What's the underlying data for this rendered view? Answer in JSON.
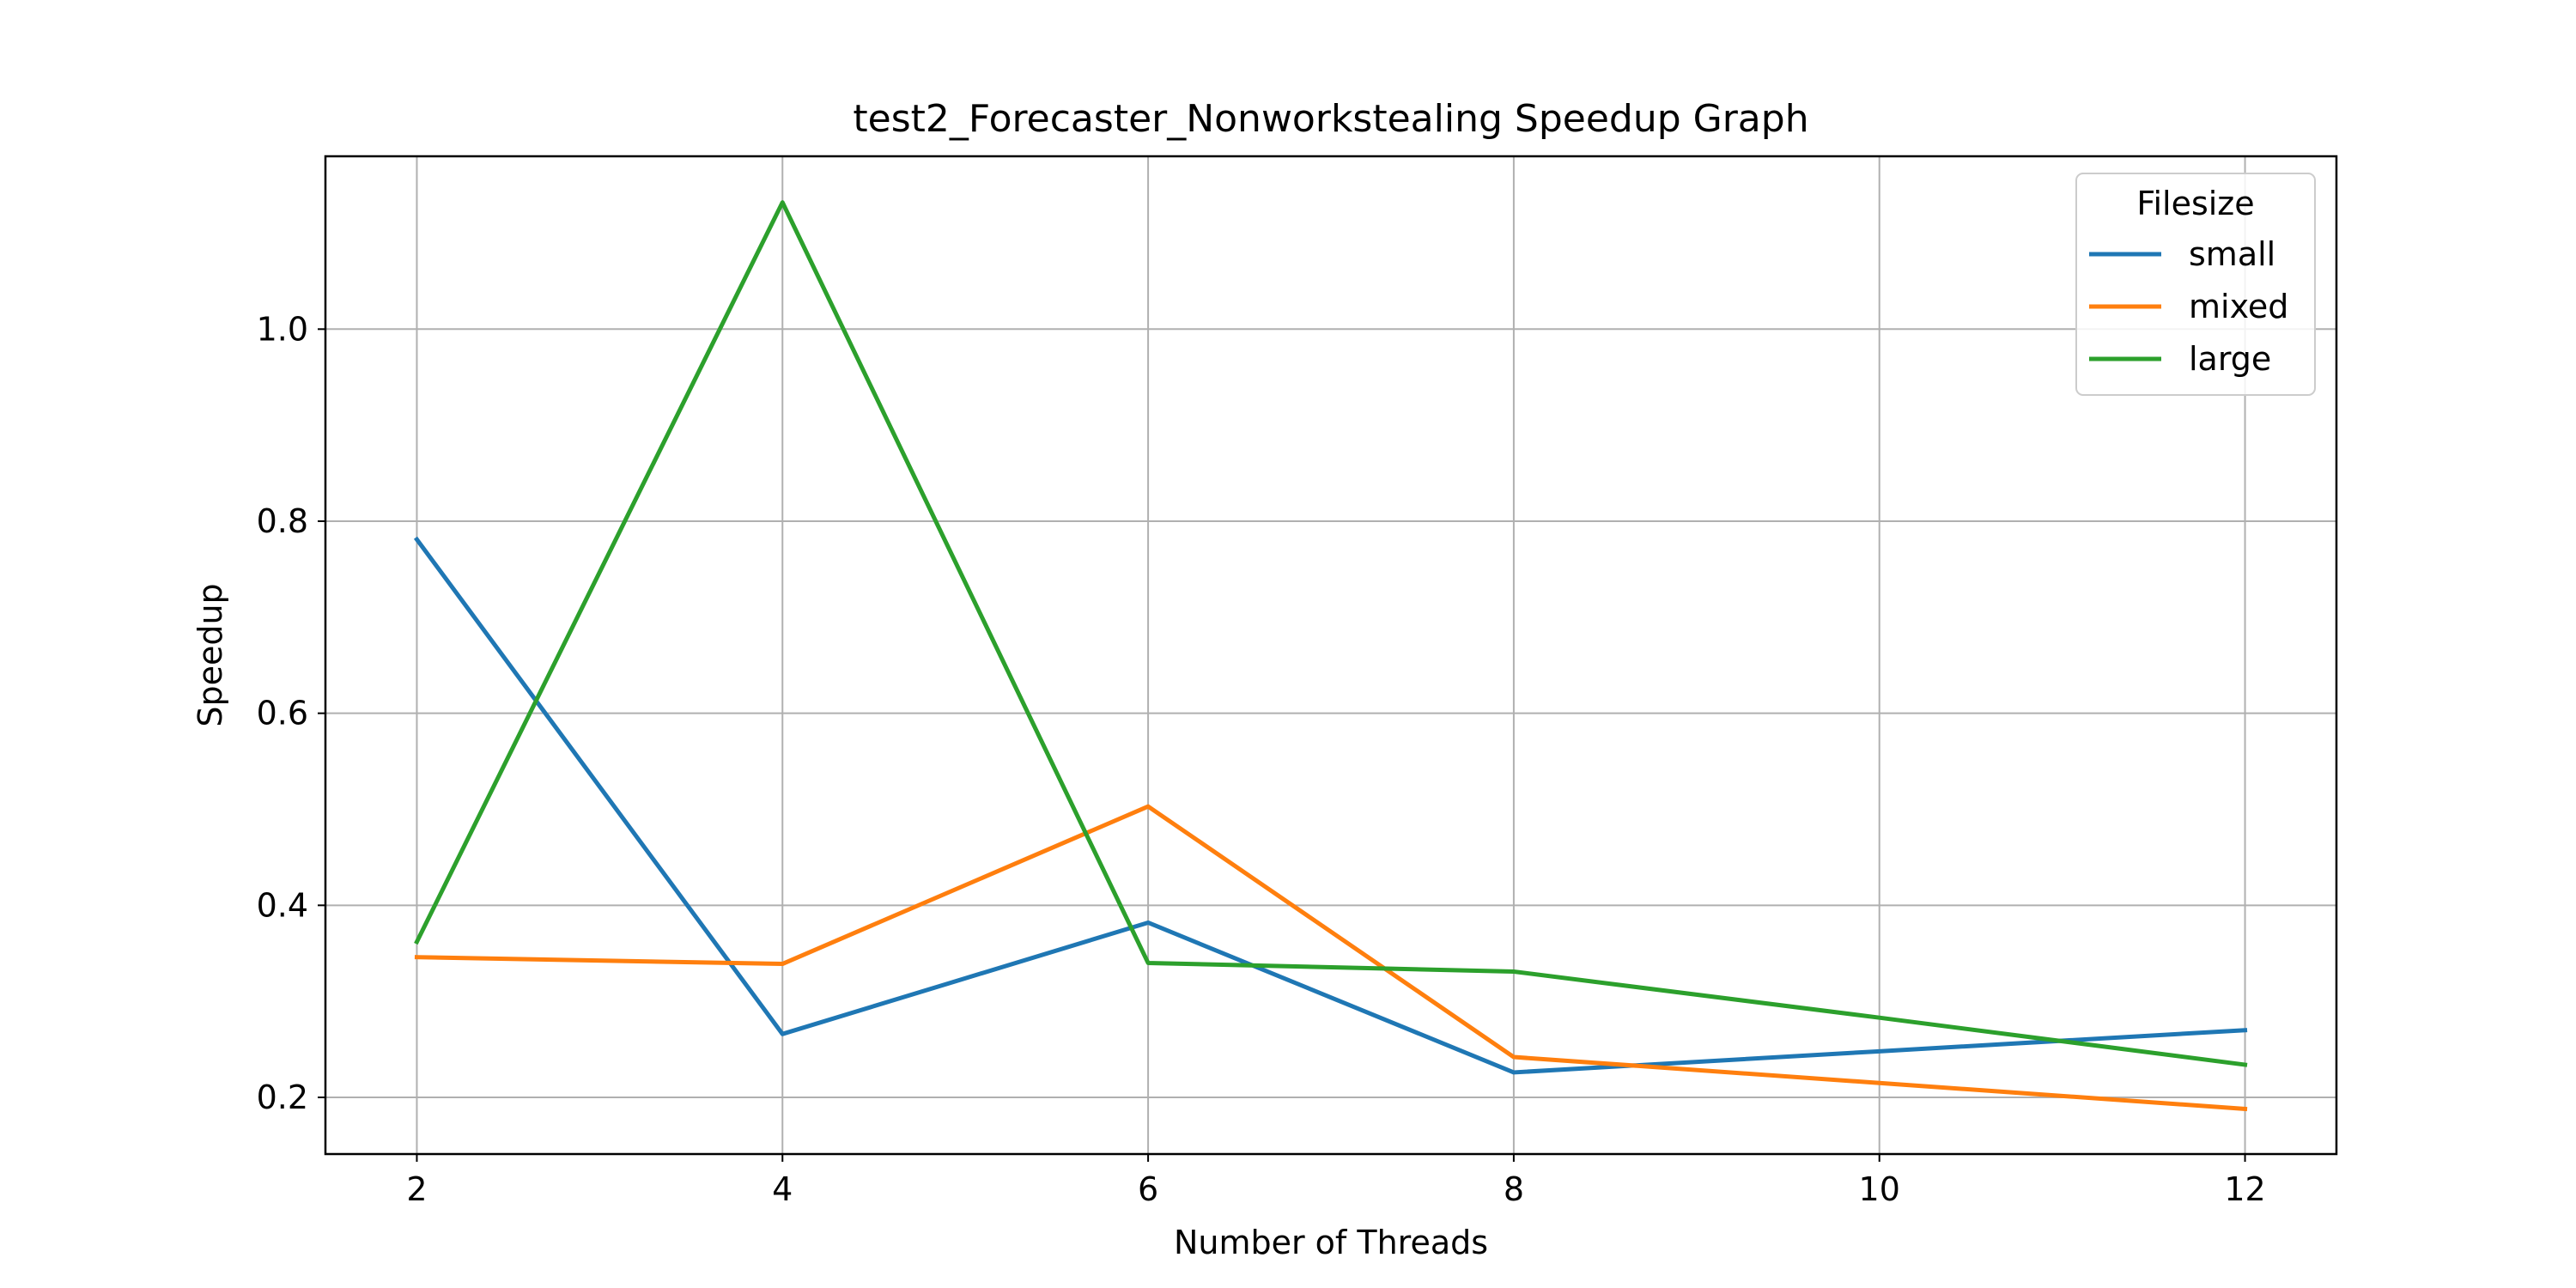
{
  "chart_data": {
    "type": "line",
    "title": "test2_Forecaster_Nonworkstealing Speedup Graph",
    "xlabel": "Number of Threads",
    "ylabel": "Speedup",
    "x": [
      2,
      4,
      6,
      8,
      10,
      12
    ],
    "xlim": [
      1.5,
      12.5
    ],
    "ylim": [
      0.141,
      1.18
    ],
    "xticks": [
      2,
      4,
      6,
      8,
      10,
      12
    ],
    "yticks": [
      0.2,
      0.4,
      0.6,
      0.8,
      1.0
    ],
    "ytick_labels": [
      "0.2",
      "0.4",
      "0.6",
      "0.8",
      "1.0"
    ],
    "grid": true,
    "legend": {
      "title": "Filesize",
      "placement": "top-right"
    },
    "series": [
      {
        "name": "small",
        "color": "#1f77b4",
        "values": [
          0.781,
          0.266,
          0.382,
          0.226,
          0.248,
          0.27
        ]
      },
      {
        "name": "mixed",
        "color": "#ff7f0e",
        "values": [
          0.346,
          0.339,
          0.503,
          0.242,
          0.215,
          0.188
        ]
      },
      {
        "name": "large",
        "color": "#2ca02c",
        "values": [
          0.362,
          1.132,
          0.34,
          0.331,
          0.283,
          0.234
        ]
      }
    ]
  }
}
